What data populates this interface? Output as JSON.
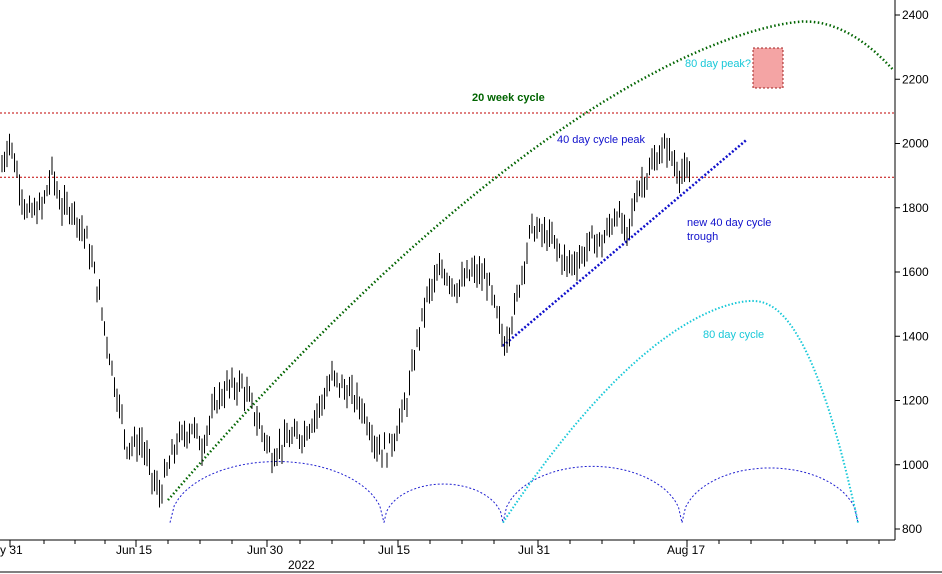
{
  "chart_data": {
    "type": "ohlc",
    "ylim": [
      770,
      2450
    ],
    "yticks": [
      800,
      1000,
      1200,
      1400,
      1600,
      1800,
      2000,
      2200,
      2400
    ],
    "yaxis_position": "right",
    "xticks": [
      "y 31",
      "Jun 15",
      "Jun 30",
      "Jul 15",
      "Jul 31",
      "Aug 17"
    ],
    "year_label": "2022",
    "horizontal_levels": [
      1895,
      2095
    ],
    "series": [
      {
        "name": "price",
        "anchors": [
          [
            0,
            1930
          ],
          [
            3,
            2010
          ],
          [
            10,
            1780
          ],
          [
            16,
            1800
          ],
          [
            20,
            1910
          ],
          [
            24,
            1800
          ],
          [
            28,
            1800
          ],
          [
            34,
            1700
          ],
          [
            38,
            1560
          ],
          [
            44,
            1300
          ],
          [
            50,
            1060
          ],
          [
            56,
            1070
          ],
          [
            60,
            960
          ],
          [
            63,
            910
          ],
          [
            70,
            1070
          ],
          [
            76,
            1120
          ],
          [
            80,
            1060
          ],
          [
            86,
            1200
          ],
          [
            90,
            1240
          ],
          [
            96,
            1250
          ],
          [
            101,
            1160
          ],
          [
            108,
            1030
          ],
          [
            114,
            1080
          ],
          [
            120,
            1090
          ],
          [
            126,
            1160
          ],
          [
            132,
            1270
          ],
          [
            138,
            1230
          ],
          [
            144,
            1180
          ],
          [
            150,
            1060
          ],
          [
            154,
            1040
          ],
          [
            158,
            1110
          ],
          [
            162,
            1200
          ],
          [
            166,
            1380
          ],
          [
            170,
            1520
          ],
          [
            176,
            1610
          ],
          [
            182,
            1550
          ],
          [
            188,
            1600
          ],
          [
            194,
            1580
          ],
          [
            198,
            1460
          ],
          [
            201,
            1380
          ],
          [
            205,
            1480
          ],
          [
            208,
            1600
          ],
          [
            212,
            1740
          ],
          [
            216,
            1720
          ],
          [
            220,
            1700
          ],
          [
            226,
            1620
          ],
          [
            232,
            1650
          ],
          [
            236,
            1700
          ],
          [
            240,
            1690
          ],
          [
            246,
            1790
          ],
          [
            250,
            1700
          ],
          [
            254,
            1860
          ],
          [
            258,
            1900
          ],
          [
            262,
            1960
          ],
          [
            266,
            1990
          ],
          [
            270,
            1920
          ],
          [
            276,
            1890
          ]
        ]
      }
    ],
    "cycle_lines": [
      {
        "name": "20 week cycle",
        "color": "#006400",
        "points": [
          [
            0.18,
            890
          ],
          [
            0.5,
            1490
          ],
          [
            0.72,
            2050
          ],
          [
            0.86,
            2320
          ],
          [
            1.0,
            2380
          ],
          [
            1.1,
            2230
          ]
        ]
      },
      {
        "name": "80 day cycle",
        "color": "#18c8d8",
        "points": [
          [
            0.0,
            820
          ],
          [
            0.25,
            1200
          ],
          [
            0.45,
            1460
          ],
          [
            0.55,
            1510
          ],
          [
            0.72,
            1290
          ],
          [
            0.9,
            820
          ]
        ]
      },
      {
        "name": "40 day cycle",
        "color": "#1010cc",
        "points": [
          [
            0.0,
            1370
          ],
          [
            1.0,
            2010
          ]
        ]
      }
    ],
    "cycle_arcs": [
      {
        "name": "arc-1",
        "from": 0.0,
        "to": 1.0,
        "peak": 1010
      },
      {
        "name": "arc-2",
        "from": 0.0,
        "to": 1.0,
        "peak": 940
      },
      {
        "name": "arc-3",
        "from": 0.0,
        "to": 1.0,
        "peak": 995
      },
      {
        "name": "arc-4",
        "from": 0.0,
        "to": 1.0,
        "peak": 990
      }
    ],
    "annotations": {
      "twenty_week_label": "20 week cycle",
      "forty_day_peak_label": "40 day cycle peak",
      "eighty_day_peak_label": "80 day peak?",
      "new_trough_label_line1": "new 40 day cycle",
      "new_trough_label_line2": "trough",
      "eighty_day_cycle_label": "80 day cycle"
    }
  }
}
